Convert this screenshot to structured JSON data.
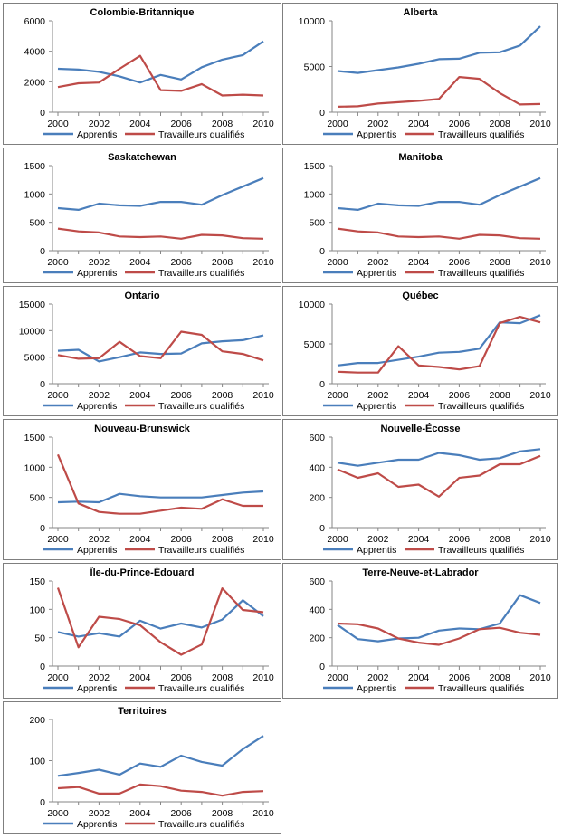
{
  "figure": {
    "series_names": [
      "Apprentis",
      "Travailleurs qualifiés"
    ],
    "colors": {
      "apprentis": "#4a7ebb",
      "travailleurs": "#be4b48",
      "axis": "#868686",
      "frame": "#7f7f7f"
    }
  },
  "chart_data": [
    {
      "type": "line",
      "title": "Colombie-Britannique",
      "categories": [
        2000,
        2001,
        2002,
        2003,
        2004,
        2005,
        2006,
        2007,
        2008,
        2009,
        2010
      ],
      "x_ticks": [
        "2000",
        "2002",
        "2004",
        "2006",
        "2008",
        "2010"
      ],
      "y_ticks": [
        "0",
        "2000",
        "4000",
        "6000"
      ],
      "ylim": [
        0,
        6000
      ],
      "series": [
        {
          "name": "Apprentis",
          "values": [
            2850,
            2800,
            2650,
            2350,
            1950,
            2450,
            2150,
            2950,
            3450,
            3750,
            4650
          ]
        },
        {
          "name": "Travailleurs qualifiés",
          "values": [
            1650,
            1900,
            1950,
            2850,
            3700,
            1450,
            1400,
            1850,
            1100,
            1150,
            1100
          ]
        }
      ]
    },
    {
      "type": "line",
      "title": "Alberta",
      "categories": [
        2000,
        2001,
        2002,
        2003,
        2004,
        2005,
        2006,
        2007,
        2008,
        2009,
        2010
      ],
      "x_ticks": [
        "2000",
        "2002",
        "2004",
        "2006",
        "2008",
        "2010"
      ],
      "y_ticks": [
        "0",
        "5000",
        "10000"
      ],
      "ylim": [
        0,
        10000
      ],
      "series": [
        {
          "name": "Apprentis",
          "values": [
            4500,
            4300,
            4600,
            4900,
            5300,
            5800,
            5850,
            6500,
            6550,
            7300,
            9400
          ]
        },
        {
          "name": "Travailleurs qualifiés",
          "values": [
            600,
            650,
            950,
            1100,
            1250,
            1450,
            3850,
            3650,
            2100,
            850,
            900
          ]
        }
      ]
    },
    {
      "type": "line",
      "title": "Saskatchewan",
      "categories": [
        2000,
        2001,
        2002,
        2003,
        2004,
        2005,
        2006,
        2007,
        2008,
        2009,
        2010
      ],
      "x_ticks": [
        "2000",
        "2002",
        "2004",
        "2006",
        "2008",
        "2010"
      ],
      "y_ticks": [
        "0",
        "500",
        "1000",
        "1500"
      ],
      "ylim": [
        0,
        1500
      ],
      "series": [
        {
          "name": "Apprentis",
          "values": [
            750,
            720,
            830,
            800,
            790,
            860,
            860,
            810,
            980,
            1130,
            1280
          ]
        },
        {
          "name": "Travailleurs qualifiés",
          "values": [
            390,
            340,
            320,
            250,
            240,
            250,
            210,
            280,
            270,
            220,
            210
          ]
        }
      ]
    },
    {
      "type": "line",
      "title": "Manitoba",
      "categories": [
        2000,
        2001,
        2002,
        2003,
        2004,
        2005,
        2006,
        2007,
        2008,
        2009,
        2010
      ],
      "x_ticks": [
        "2000",
        "2002",
        "2004",
        "2006",
        "2008",
        "2010"
      ],
      "y_ticks": [
        "0",
        "500",
        "1000",
        "1500"
      ],
      "ylim": [
        0,
        1500
      ],
      "series": [
        {
          "name": "Apprentis",
          "values": [
            750,
            720,
            830,
            800,
            790,
            860,
            860,
            810,
            980,
            1130,
            1280
          ]
        },
        {
          "name": "Travailleurs qualifiés",
          "values": [
            390,
            340,
            320,
            250,
            240,
            250,
            210,
            280,
            270,
            220,
            210
          ]
        }
      ]
    },
    {
      "type": "line",
      "title": "Ontario",
      "categories": [
        2000,
        2001,
        2002,
        2003,
        2004,
        2005,
        2006,
        2007,
        2008,
        2009,
        2010
      ],
      "x_ticks": [
        "2000",
        "2002",
        "2004",
        "2006",
        "2008",
        "2010"
      ],
      "y_ticks": [
        "0",
        "5000",
        "10000",
        "15000"
      ],
      "ylim": [
        0,
        15000
      ],
      "series": [
        {
          "name": "Apprentis",
          "values": [
            6200,
            6400,
            4200,
            5000,
            5900,
            5600,
            5700,
            7600,
            8000,
            8200,
            9100
          ]
        },
        {
          "name": "Travailleurs qualifiés",
          "values": [
            5400,
            4700,
            4800,
            7900,
            5200,
            4800,
            9800,
            9200,
            6100,
            5600,
            4400
          ]
        }
      ]
    },
    {
      "type": "line",
      "title": "Québec",
      "categories": [
        2000,
        2001,
        2002,
        2003,
        2004,
        2005,
        2006,
        2007,
        2008,
        2009,
        2010
      ],
      "x_ticks": [
        "2000",
        "2002",
        "2004",
        "2006",
        "2008",
        "2010"
      ],
      "y_ticks": [
        "0",
        "5000",
        "10000"
      ],
      "ylim": [
        0,
        10000
      ],
      "series": [
        {
          "name": "Apprentis",
          "values": [
            2300,
            2600,
            2600,
            3000,
            3400,
            3900,
            4000,
            4400,
            7700,
            7600,
            8600
          ]
        },
        {
          "name": "Travailleurs qualifiés",
          "values": [
            1500,
            1400,
            1400,
            4700,
            2300,
            2100,
            1800,
            2200,
            7600,
            8400,
            7700
          ]
        }
      ]
    },
    {
      "type": "line",
      "title": "Nouveau-Brunswick",
      "categories": [
        2000,
        2001,
        2002,
        2003,
        2004,
        2005,
        2006,
        2007,
        2008,
        2009,
        2010
      ],
      "x_ticks": [
        "2000",
        "2002",
        "2004",
        "2006",
        "2008",
        "2010"
      ],
      "y_ticks": [
        "0",
        "500",
        "1000",
        "1500"
      ],
      "ylim": [
        0,
        1500
      ],
      "series": [
        {
          "name": "Apprentis",
          "values": [
            420,
            430,
            420,
            560,
            520,
            500,
            500,
            500,
            540,
            580,
            600
          ]
        },
        {
          "name": "Travailleurs qualifiés",
          "values": [
            1210,
            400,
            260,
            230,
            230,
            280,
            330,
            310,
            470,
            360,
            360
          ]
        }
      ]
    },
    {
      "type": "line",
      "title": "Nouvelle-Écosse",
      "categories": [
        2000,
        2001,
        2002,
        2003,
        2004,
        2005,
        2006,
        2007,
        2008,
        2009,
        2010
      ],
      "x_ticks": [
        "2000",
        "2002",
        "2004",
        "2006",
        "2008",
        "2010"
      ],
      "y_ticks": [
        "0",
        "200",
        "400",
        "600"
      ],
      "ylim": [
        0,
        600
      ],
      "series": [
        {
          "name": "Apprentis",
          "values": [
            430,
            410,
            430,
            450,
            450,
            495,
            480,
            450,
            460,
            505,
            520
          ]
        },
        {
          "name": "Travailleurs qualifiés",
          "values": [
            385,
            330,
            360,
            270,
            285,
            205,
            330,
            345,
            420,
            420,
            475
          ]
        }
      ]
    },
    {
      "type": "line",
      "title": "Île-du-Prince-Édouard",
      "categories": [
        2000,
        2001,
        2002,
        2003,
        2004,
        2005,
        2006,
        2007,
        2008,
        2009,
        2010
      ],
      "x_ticks": [
        "2000",
        "2002",
        "2004",
        "2006",
        "2008",
        "2010"
      ],
      "y_ticks": [
        "0",
        "50",
        "100",
        "150"
      ],
      "ylim": [
        0,
        150
      ],
      "series": [
        {
          "name": "Apprentis",
          "values": [
            60,
            52,
            58,
            52,
            80,
            66,
            75,
            68,
            82,
            116,
            88
          ]
        },
        {
          "name": "Travailleurs qualifiés",
          "values": [
            138,
            33,
            87,
            83,
            72,
            42,
            20,
            38,
            137,
            99,
            95
          ]
        }
      ]
    },
    {
      "type": "line",
      "title": "Terre-Neuve-et-Labrador",
      "categories": [
        2000,
        2001,
        2002,
        2003,
        2004,
        2005,
        2006,
        2007,
        2008,
        2009,
        2010
      ],
      "x_ticks": [
        "2000",
        "2002",
        "2004",
        "2006",
        "2008",
        "2010"
      ],
      "y_ticks": [
        "0",
        "200",
        "400",
        "600"
      ],
      "ylim": [
        0,
        600
      ],
      "series": [
        {
          "name": "Apprentis",
          "values": [
            290,
            190,
            175,
            195,
            200,
            250,
            265,
            260,
            300,
            500,
            445
          ]
        },
        {
          "name": "Travailleurs qualifiés",
          "values": [
            300,
            295,
            265,
            195,
            165,
            150,
            195,
            260,
            270,
            235,
            220
          ]
        }
      ]
    },
    {
      "type": "line",
      "title": "Territoires",
      "categories": [
        2000,
        2001,
        2002,
        2003,
        2004,
        2005,
        2006,
        2007,
        2008,
        2009,
        2010
      ],
      "x_ticks": [
        "2000",
        "2002",
        "2004",
        "2006",
        "2008",
        "2010"
      ],
      "y_ticks": [
        "0",
        "100",
        "200"
      ],
      "ylim": [
        0,
        200
      ],
      "series": [
        {
          "name": "Apprentis",
          "values": [
            63,
            70,
            78,
            66,
            93,
            85,
            112,
            97,
            88,
            128,
            160
          ]
        },
        {
          "name": "Travailleurs qualifiés",
          "values": [
            33,
            36,
            20,
            20,
            42,
            38,
            27,
            24,
            15,
            24,
            26
          ]
        }
      ]
    }
  ]
}
